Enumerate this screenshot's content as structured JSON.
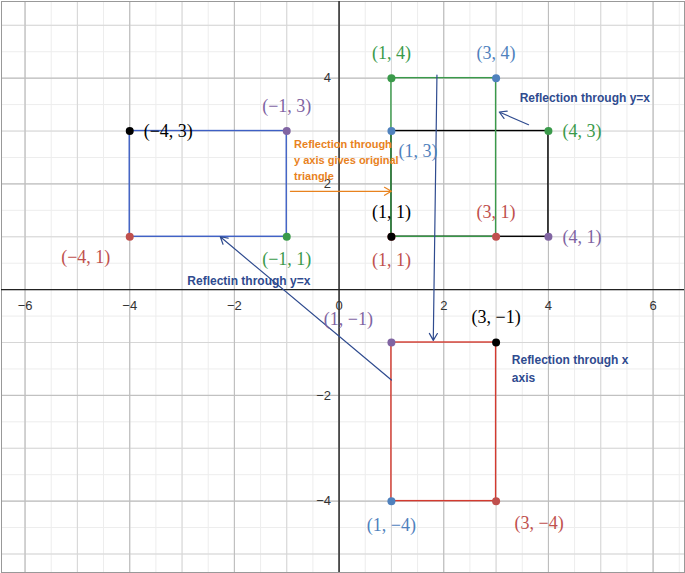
{
  "chart_data": {
    "type": "geometry",
    "xlim": [
      -6.45,
      6.6
    ],
    "ylim": [
      -5.35,
      5.45
    ],
    "xticks": [
      -6,
      -4,
      -2,
      0,
      2,
      4,
      6
    ],
    "yticks": [
      -4,
      -2,
      2,
      4
    ],
    "grid": true,
    "rectangles": [
      {
        "color": "#000000",
        "x": [
          1,
          4
        ],
        "y": [
          1,
          3
        ]
      },
      {
        "color": "#3a9a4a",
        "x": [
          1,
          3
        ],
        "y": [
          1,
          4
        ]
      },
      {
        "color": "#3d5fc4",
        "x": [
          -4,
          -1
        ],
        "y": [
          1,
          3
        ]
      },
      {
        "color": "#d43a2f",
        "x": [
          1,
          3
        ],
        "y": [
          -4,
          -1
        ]
      }
    ],
    "points": [
      {
        "x": 1,
        "y": 4,
        "label": "(1, 4)",
        "color": "#3a9a4a"
      },
      {
        "x": 3,
        "y": 4,
        "label": "(3, 4)",
        "color": "#4f81bd"
      },
      {
        "x": 4,
        "y": 3,
        "label": "(4, 3)",
        "color": "#3a9a4a"
      },
      {
        "x": 1,
        "y": 3,
        "label": "(1, 3)",
        "color": "#4f81bd"
      },
      {
        "x": 3,
        "y": 1,
        "label": "(3, 1)",
        "color": "#c0504d"
      },
      {
        "x": 4,
        "y": 1,
        "label": "(4, 1)",
        "color": "#8064a2"
      },
      {
        "x": 1,
        "y": 1,
        "label": "(1, 1)",
        "color": "#c0504d"
      },
      {
        "x": 1,
        "y": 1,
        "label": "(1, 1)",
        "color": "#000000"
      },
      {
        "x": -4,
        "y": 3,
        "label": "(−4, 3)",
        "color": "#000000"
      },
      {
        "x": -1,
        "y": 3,
        "label": "(−1, 3)",
        "color": "#8064a2"
      },
      {
        "x": -4,
        "y": 1,
        "label": "(−4, 1)",
        "color": "#c0504d"
      },
      {
        "x": -1,
        "y": 1,
        "label": "(−1, 1)",
        "color": "#3a9a4a"
      },
      {
        "x": 1,
        "y": -1,
        "label": "(1, −1)",
        "color": "#8064a2"
      },
      {
        "x": 3,
        "y": -1,
        "label": "(3, −1)",
        "color": "#000000"
      },
      {
        "x": 1,
        "y": -4,
        "label": "(1, −4)",
        "color": "#4f81bd"
      },
      {
        "x": 3,
        "y": -4,
        "label": "(3, −4)",
        "color": "#c0504d"
      }
    ],
    "annotations": [
      {
        "lines": [
          "Reflection through y=x"
        ],
        "color": "#2f4b8f"
      },
      {
        "lines": [
          "Reflection through",
          "y axis gives original",
          "triangle"
        ],
        "color": "#e8821e"
      },
      {
        "lines": [
          "Reflectin through y=x"
        ],
        "color": "#2f4b8f"
      },
      {
        "lines": [
          "Reflection through x",
          "axis"
        ],
        "color": "#2f4b8f"
      }
    ]
  }
}
